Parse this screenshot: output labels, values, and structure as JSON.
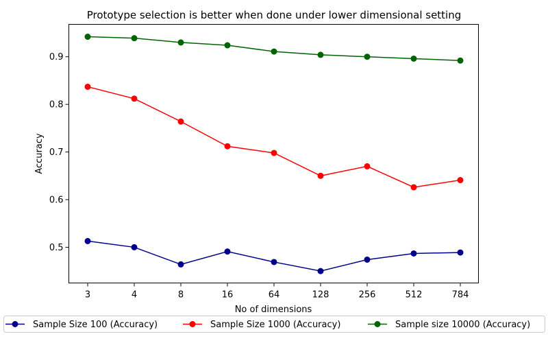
{
  "chart_data": {
    "type": "line",
    "title": "Prototype selection is better when done under lower dimensional setting",
    "xlabel": "No of dimensions",
    "ylabel": "Accuracy",
    "categories": [
      "3",
      "4",
      "8",
      "16",
      "64",
      "128",
      "256",
      "512",
      "784"
    ],
    "ylim": [
      0.425,
      0.968
    ],
    "yticks": [
      "0.5",
      "0.6",
      "0.7",
      "0.8",
      "0.9"
    ],
    "grid": false,
    "legend_placement": "bottom",
    "series": [
      {
        "name": "Sample Size 100 (Accuracy)",
        "color": "#00008b",
        "values": [
          0.513,
          0.5,
          0.464,
          0.491,
          0.469,
          0.45,
          0.474,
          0.487,
          0.489
        ]
      },
      {
        "name": "Sample Size 1000 (Accuracy)",
        "color": "#ff0000",
        "values": [
          0.837,
          0.812,
          0.764,
          0.712,
          0.698,
          0.65,
          0.67,
          0.626,
          0.641
        ]
      },
      {
        "name": "Sample size 10000 (Accuracy)",
        "color": "#006400",
        "values": [
          0.942,
          0.939,
          0.93,
          0.924,
          0.911,
          0.904,
          0.9,
          0.896,
          0.892
        ]
      }
    ]
  }
}
